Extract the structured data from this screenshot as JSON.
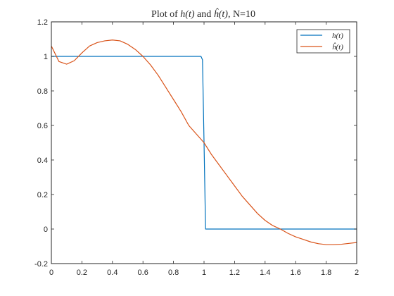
{
  "chart_data": {
    "type": "line",
    "title": "Plot of h(t) and ĥ(t), N=10",
    "xlabel": "",
    "ylabel": "",
    "xlim": [
      0,
      2
    ],
    "ylim": [
      -0.2,
      1.2
    ],
    "xticks": [
      0,
      0.2,
      0.4,
      0.6,
      0.8,
      1,
      1.2,
      1.4,
      1.6,
      1.8,
      2
    ],
    "xtick_labels": [
      "0",
      "0.2",
      "0.4",
      "0.6",
      "0.8",
      "1",
      "1.2",
      "1.4",
      "1.6",
      "1.8",
      "2"
    ],
    "yticks": [
      -0.2,
      0,
      0.2,
      0.4,
      0.6,
      0.8,
      1,
      1.2
    ],
    "ytick_labels": [
      "-0.2",
      "0",
      "0.2",
      "0.4",
      "0.6",
      "0.8",
      "1",
      "1.2"
    ],
    "grid": false,
    "legend_position": "top-right",
    "series": [
      {
        "name": "h(t)",
        "color": "#0072bd",
        "x": [
          0,
          0.98,
          0.99,
          1.0,
          1.01,
          2.0
        ],
        "y": [
          1,
          1,
          0.98,
          0.5,
          0,
          0
        ]
      },
      {
        "name": "ĥ(t)",
        "color": "#d95319",
        "x": [
          0,
          0.05,
          0.1,
          0.15,
          0.2,
          0.25,
          0.3,
          0.35,
          0.4,
          0.45,
          0.5,
          0.55,
          0.6,
          0.65,
          0.7,
          0.75,
          0.8,
          0.85,
          0.9,
          0.95,
          1.0,
          1.05,
          1.1,
          1.15,
          1.2,
          1.25,
          1.3,
          1.35,
          1.4,
          1.45,
          1.5,
          1.55,
          1.6,
          1.65,
          1.7,
          1.75,
          1.8,
          1.85,
          1.9,
          1.95,
          2.0
        ],
        "y": [
          1.06,
          0.97,
          0.955,
          0.975,
          1.02,
          1.06,
          1.08,
          1.09,
          1.095,
          1.09,
          1.07,
          1.04,
          1.0,
          0.95,
          0.89,
          0.82,
          0.75,
          0.68,
          0.6,
          0.55,
          0.5,
          0.43,
          0.37,
          0.31,
          0.25,
          0.19,
          0.14,
          0.09,
          0.05,
          0.02,
          0.0,
          -0.025,
          -0.045,
          -0.06,
          -0.075,
          -0.085,
          -0.09,
          -0.09,
          -0.088,
          -0.083,
          -0.078
        ]
      }
    ]
  }
}
